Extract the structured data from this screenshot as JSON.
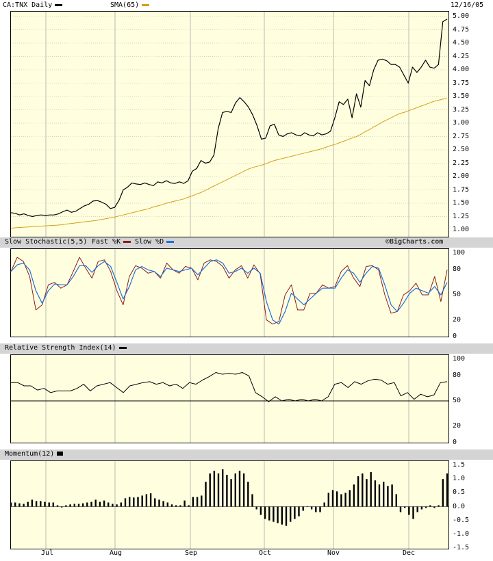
{
  "colors": {
    "price": "#000000",
    "sma": "#d4a017",
    "fast_k": "#8b1a1a",
    "slow_d": "#1e6fd9",
    "rsi": "#000000",
    "momentum": "#000000",
    "panel_bg": "#ffffe0",
    "header_bg": "#d4d4d4",
    "grid": "#9a9a9a"
  },
  "header": {
    "price_title": "CA:TNX Daily",
    "sma_title": "SMA(65)",
    "date": "12/16/05",
    "stoch_title": "Slow Stochastic(5,5)",
    "fast_k": "Fast %K",
    "slow_d": "Slow %D",
    "copyright": "©BigCharts.com",
    "rsi_title": "Relative Strength Index(14)",
    "mom_title": "Momentum(12)"
  },
  "x_labels": [
    "Jul",
    "Aug",
    "Sep",
    "Oct",
    "Nov",
    "Dec"
  ],
  "chart_data": [
    {
      "type": "line",
      "title": "CA:TNX Daily",
      "ylim": [
        1.0,
        5.0
      ],
      "yticks": [
        "5.00",
        "4.75",
        "4.50",
        "4.25",
        "4.00",
        "3.75",
        "3.50",
        "3.25",
        "3.00",
        "2.75",
        "2.50",
        "2.25",
        "2.00",
        "1.75",
        "1.50",
        "1.25",
        "1.00"
      ],
      "series": [
        {
          "name": "CA:TNX Daily",
          "values": [
            1.32,
            1.31,
            1.28,
            1.3,
            1.27,
            1.25,
            1.27,
            1.28,
            1.27,
            1.28,
            1.28,
            1.3,
            1.34,
            1.37,
            1.33,
            1.35,
            1.4,
            1.45,
            1.48,
            1.54,
            1.55,
            1.52,
            1.48,
            1.4,
            1.42,
            1.55,
            1.75,
            1.8,
            1.88,
            1.86,
            1.85,
            1.88,
            1.85,
            1.83,
            1.9,
            1.88,
            1.92,
            1.88,
            1.87,
            1.9,
            1.87,
            1.92,
            2.1,
            2.15,
            2.3,
            2.25,
            2.27,
            2.4,
            2.9,
            3.2,
            3.22,
            3.2,
            3.38,
            3.48,
            3.4,
            3.3,
            3.15,
            2.95,
            2.7,
            2.72,
            2.95,
            2.98,
            2.78,
            2.75,
            2.8,
            2.82,
            2.78,
            2.76,
            2.82,
            2.78,
            2.76,
            2.82,
            2.78,
            2.8,
            2.85,
            3.1,
            3.4,
            3.35,
            3.45,
            3.1,
            3.55,
            3.3,
            3.8,
            3.7,
            4.0,
            4.18,
            4.2,
            4.17,
            4.1,
            4.1,
            4.05,
            3.9,
            3.75,
            4.05,
            3.95,
            4.05,
            4.18,
            4.05,
            4.03,
            4.1,
            4.9,
            4.95
          ]
        },
        {
          "name": "SMA(65)",
          "values": [
            1.03,
            1.04,
            1.045,
            1.05,
            1.055,
            1.06,
            1.065,
            1.07,
            1.075,
            1.08,
            1.085,
            1.09,
            1.1,
            1.11,
            1.12,
            1.13,
            1.14,
            1.15,
            1.16,
            1.17,
            1.18,
            1.195,
            1.21,
            1.225,
            1.24,
            1.26,
            1.28,
            1.3,
            1.32,
            1.34,
            1.36,
            1.38,
            1.4,
            1.43,
            1.45,
            1.47,
            1.5,
            1.52,
            1.54,
            1.56,
            1.58,
            1.61,
            1.64,
            1.67,
            1.7,
            1.74,
            1.78,
            1.82,
            1.86,
            1.9,
            1.94,
            1.98,
            2.02,
            2.06,
            2.1,
            2.14,
            2.17,
            2.19,
            2.21,
            2.24,
            2.27,
            2.3,
            2.32,
            2.34,
            2.36,
            2.38,
            2.4,
            2.42,
            2.44,
            2.46,
            2.48,
            2.5,
            2.52,
            2.55,
            2.58,
            2.6,
            2.63,
            2.66,
            2.69,
            2.72,
            2.75,
            2.79,
            2.84,
            2.88,
            2.93,
            2.97,
            3.02,
            3.06,
            3.1,
            3.14,
            3.18,
            3.2,
            3.23,
            3.26,
            3.29,
            3.32,
            3.35,
            3.38,
            3.41,
            3.43,
            3.45,
            3.46
          ]
        }
      ]
    },
    {
      "type": "line",
      "title": "Slow Stochastic(5,5)",
      "ylim": [
        0,
        100
      ],
      "yticks": [
        "100",
        "80",
        "50",
        "20",
        "0"
      ],
      "series": [
        {
          "name": "Fast %K",
          "values": [
            78,
            95,
            90,
            72,
            32,
            38,
            62,
            65,
            58,
            62,
            78,
            95,
            82,
            70,
            90,
            92,
            78,
            55,
            38,
            72,
            85,
            82,
            76,
            78,
            70,
            88,
            80,
            76,
            84,
            82,
            68,
            88,
            92,
            90,
            84,
            70,
            80,
            85,
            70,
            86,
            75,
            20,
            15,
            18,
            50,
            62,
            32,
            32,
            52,
            52,
            62,
            58,
            60,
            78,
            85,
            70,
            60,
            84,
            85,
            80,
            50,
            28,
            30,
            50,
            55,
            64,
            50,
            50,
            72,
            42,
            80
          ]
        },
        {
          "name": "Slow %D",
          "values": [
            78,
            86,
            88,
            80,
            55,
            40,
            55,
            63,
            62,
            62,
            72,
            85,
            85,
            77,
            85,
            90,
            84,
            65,
            45,
            60,
            80,
            84,
            80,
            78,
            72,
            82,
            80,
            78,
            80,
            82,
            74,
            82,
            90,
            92,
            88,
            76,
            78,
            82,
            76,
            82,
            76,
            42,
            20,
            15,
            30,
            52,
            45,
            38,
            45,
            52,
            58,
            58,
            58,
            70,
            80,
            76,
            65,
            76,
            84,
            82,
            62,
            38,
            30,
            40,
            52,
            58,
            55,
            52,
            60,
            50,
            65
          ]
        }
      ]
    },
    {
      "type": "line",
      "title": "Relative Strength Index(14)",
      "ylim": [
        0,
        100
      ],
      "yticks": [
        "100",
        "80",
        "50",
        "20",
        "0"
      ],
      "series": [
        {
          "name": "Relative Strength Index(14)",
          "values": [
            72,
            72,
            68,
            68,
            63,
            65,
            60,
            62,
            62,
            62,
            65,
            70,
            62,
            68,
            70,
            72,
            66,
            60,
            68,
            70,
            72,
            73,
            70,
            72,
            68,
            70,
            65,
            72,
            70,
            75,
            79,
            84,
            82,
            83,
            82,
            84,
            80,
            60,
            55,
            49,
            55,
            50,
            52,
            50,
            52,
            50,
            52,
            50,
            55,
            70,
            72,
            66,
            73,
            70,
            74,
            76,
            75,
            70,
            72,
            56,
            60,
            52,
            58,
            55,
            57,
            72,
            73
          ]
        }
      ]
    },
    {
      "type": "bar",
      "title": "Momentum(12)",
      "ylim": [
        -1.5,
        1.5
      ],
      "yticks": [
        "1.5",
        "1.0",
        "0.5",
        "0.0",
        "-0.5",
        "-1.0",
        "-1.5"
      ],
      "series": [
        {
          "name": "Momentum(12)",
          "values": [
            0.15,
            0.15,
            0.12,
            0.1,
            0.17,
            0.25,
            0.2,
            0.2,
            0.17,
            0.15,
            0.15,
            0.05,
            -0.03,
            0.05,
            0.08,
            0.1,
            0.1,
            0.12,
            0.15,
            0.17,
            0.25,
            0.17,
            0.22,
            0.15,
            0.1,
            0.08,
            0.15,
            0.3,
            0.35,
            0.33,
            0.35,
            0.4,
            0.45,
            0.48,
            0.3,
            0.25,
            0.2,
            0.15,
            0.08,
            0.05,
            0.05,
            0.22,
            0.05,
            0.35,
            0.35,
            0.4,
            0.9,
            1.2,
            1.3,
            1.2,
            1.35,
            1.15,
            1.0,
            1.2,
            1.3,
            1.2,
            0.9,
            0.45,
            -0.1,
            -0.3,
            -0.45,
            -0.5,
            -0.55,
            -0.6,
            -0.65,
            -0.7,
            -0.55,
            -0.45,
            -0.35,
            -0.15,
            0.0,
            -0.1,
            -0.2,
            -0.2,
            0.15,
            0.5,
            0.6,
            0.55,
            0.45,
            0.5,
            0.6,
            0.8,
            1.1,
            1.2,
            1.0,
            1.25,
            0.95,
            0.8,
            0.9,
            0.75,
            0.8,
            0.45,
            -0.2,
            -0.05,
            -0.3,
            -0.45,
            -0.2,
            -0.1,
            -0.05,
            0.05,
            -0.05,
            0.05,
            1.0,
            1.2
          ]
        }
      ]
    }
  ]
}
